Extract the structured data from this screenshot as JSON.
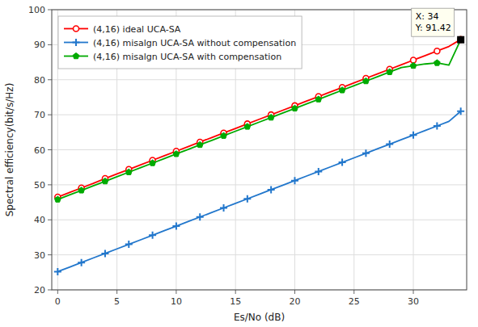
{
  "chart_data": {
    "type": "line",
    "xlabel": "Es/No (dB)",
    "ylabel": "Spectral efficiency(bit/s/Hz)",
    "xlim": [
      -0.5,
      34.5
    ],
    "ylim": [
      20,
      100
    ],
    "xticks": [
      0,
      5,
      10,
      15,
      20,
      25,
      30
    ],
    "yticks": [
      20,
      30,
      40,
      50,
      60,
      70,
      80,
      90,
      100
    ],
    "grid": true,
    "legend": "upper left",
    "x": [
      0,
      1,
      2,
      3,
      4,
      5,
      6,
      7,
      8,
      9,
      10,
      11,
      12,
      13,
      14,
      15,
      16,
      17,
      18,
      19,
      20,
      21,
      22,
      23,
      24,
      25,
      26,
      27,
      28,
      29,
      30,
      31,
      32,
      33,
      34
    ],
    "series": [
      {
        "name": "(4,16) ideal UCA-SA",
        "color": "#ff0000",
        "marker": "circle",
        "values": [
          46.5,
          47.8,
          49.1,
          50.4,
          51.8,
          53.1,
          54.4,
          55.7,
          57.0,
          58.3,
          59.6,
          60.9,
          62.2,
          63.5,
          64.8,
          66.1,
          67.4,
          68.7,
          70.0,
          71.3,
          72.6,
          73.9,
          75.2,
          76.5,
          77.8,
          79.1,
          80.4,
          81.7,
          83.0,
          84.3,
          85.6,
          86.9,
          88.2,
          89.5,
          91.5
        ]
      },
      {
        "name": "(4,16) misalgn UCA-SA without compensation",
        "color": "#2277cc",
        "marker": "plus",
        "values": [
          25.2,
          26.5,
          27.8,
          29.1,
          30.4,
          31.7,
          33.0,
          34.3,
          35.6,
          36.9,
          38.2,
          39.5,
          40.8,
          42.1,
          43.4,
          44.7,
          46.0,
          47.3,
          48.6,
          49.9,
          51.2,
          52.5,
          53.8,
          55.1,
          56.4,
          57.7,
          59.0,
          60.3,
          61.6,
          62.9,
          64.2,
          65.5,
          66.8,
          68.1,
          71.0
        ]
      },
      {
        "name": "(4,16) misalgn UCA-SA with compensation",
        "color": "#00aa00",
        "marker": "pentagon",
        "values": [
          45.8,
          47.1,
          48.4,
          49.7,
          51.0,
          52.3,
          53.6,
          54.9,
          56.2,
          57.5,
          58.8,
          60.1,
          61.4,
          62.7,
          64.0,
          65.3,
          66.6,
          67.9,
          69.2,
          70.5,
          71.8,
          73.1,
          74.4,
          75.7,
          77.0,
          78.3,
          79.6,
          80.9,
          82.2,
          83.5,
          84.0,
          84.5,
          84.8,
          84.2,
          91.42
        ]
      }
    ],
    "annotations": [
      {
        "text": "X: 34\nY: 91.42",
        "x": 34,
        "y": 91.42
      }
    ]
  }
}
